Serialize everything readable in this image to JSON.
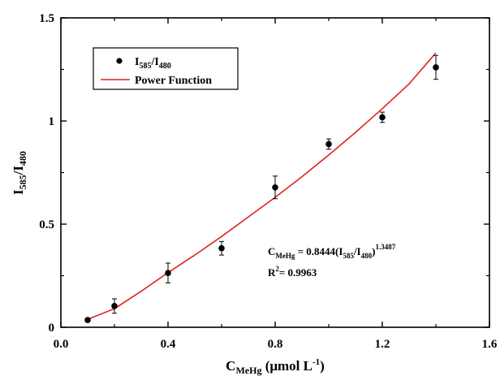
{
  "chart_data": {
    "type": "scatter",
    "xlim": [
      0.0,
      1.6
    ],
    "ylim": [
      0,
      1.5
    ],
    "x_ticks": [
      "0.0",
      "0.4",
      "0.8",
      "1.2",
      "1.6"
    ],
    "x_tick_values": [
      0.0,
      0.4,
      0.8,
      1.2,
      1.6
    ],
    "y_ticks": [
      "0",
      "0.5",
      "1",
      "1.5"
    ],
    "y_tick_values": [
      0,
      0.5,
      1,
      1.5
    ],
    "xlabel": {
      "main": "C",
      "sub": "MeHg",
      "rest": " (μmol L",
      "sup": "-1",
      "close": ")"
    },
    "ylabel": {
      "main": "I",
      "sub1": "585",
      "slash": "/I",
      "sub2": "480"
    },
    "series": [
      {
        "name": "I585/I480",
        "type": "scatter",
        "color": "#000000",
        "x": [
          0.1,
          0.2,
          0.4,
          0.6,
          0.8,
          1.0,
          1.2,
          1.4
        ],
        "y": [
          0.035,
          0.103,
          0.263,
          0.383,
          0.678,
          0.888,
          1.018,
          1.26
        ],
        "error": [
          0.0,
          0.035,
          0.048,
          0.033,
          0.055,
          0.025,
          0.025,
          0.058
        ]
      },
      {
        "name": "Power Function",
        "type": "line",
        "color": "#e02020",
        "x": [
          0.1,
          0.2,
          0.3,
          0.4,
          0.5,
          0.6,
          0.7,
          0.8,
          0.9,
          1.0,
          1.1,
          1.2,
          1.3,
          1.4
        ],
        "y": [
          0.038,
          0.09,
          0.175,
          0.265,
          0.35,
          0.44,
          0.535,
          0.63,
          0.73,
          0.835,
          0.945,
          1.06,
          1.18,
          1.33
        ]
      }
    ],
    "legend": {
      "position": "top-left",
      "entries": [
        {
          "main": "I",
          "sub1": "585",
          "slash": "/I",
          "sub2": "480",
          "marker": "dot"
        },
        {
          "text": "Power Function",
          "marker": "line"
        }
      ]
    },
    "annotation": {
      "eq_main": "C",
      "eq_sub": "MeHg",
      "eq_mid": " = 0.8444(I",
      "eq_sub1": "585",
      "eq_slash": "/I",
      "eq_sub2": "480",
      "eq_close": ")",
      "eq_exp": "1.3487",
      "r2_main": "R",
      "r2_sup": "2",
      "r2_rest": "= 0.9963"
    },
    "grid": false
  }
}
